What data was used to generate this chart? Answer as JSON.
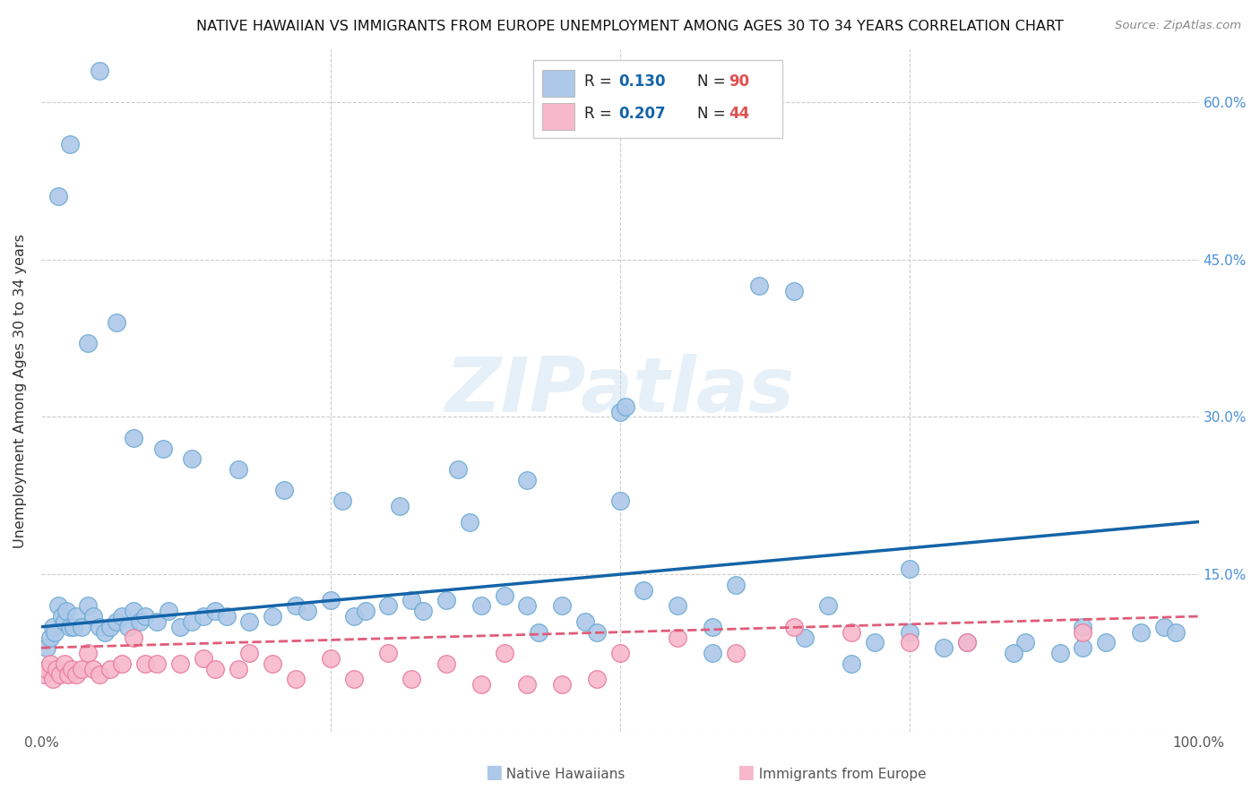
{
  "title": "NATIVE HAWAIIAN VS IMMIGRANTS FROM EUROPE UNEMPLOYMENT AMONG AGES 30 TO 34 YEARS CORRELATION CHART",
  "source": "Source: ZipAtlas.com",
  "ylabel": "Unemployment Among Ages 30 to 34 years",
  "xlim": [
    0,
    100
  ],
  "ylim": [
    0,
    65
  ],
  "native_hawaiian_color": "#adc8e8",
  "native_hawaiian_edge": "#6aaad4",
  "immigrant_europe_color": "#f7b8cb",
  "immigrant_europe_edge": "#e8799a",
  "native_line_color": "#1464a8",
  "immigrant_line_color": "#e05c7a",
  "watermark": "ZIPatlas",
  "legend_r1": "0.130",
  "legend_n1": "90",
  "legend_r2": "0.207",
  "legend_n2": "44",
  "native_hawaiians_x": [
    0.5,
    0.8,
    1.0,
    1.2,
    1.5,
    1.8,
    2.0,
    2.2,
    2.5,
    2.8,
    3.0,
    3.5,
    4.0,
    4.5,
    5.0,
    5.5,
    6.0,
    6.5,
    7.0,
    7.5,
    8.0,
    8.5,
    9.0,
    10.0,
    11.0,
    12.0,
    13.0,
    14.0,
    15.0,
    16.0,
    18.0,
    20.0,
    22.0,
    23.0,
    25.0,
    27.0,
    28.0,
    30.0,
    32.0,
    33.0,
    35.0,
    37.0,
    38.0,
    40.0,
    42.0,
    43.0,
    45.0,
    47.0,
    48.0,
    50.0,
    50.5,
    52.0,
    55.0,
    58.0,
    60.0,
    62.0,
    65.0,
    68.0,
    70.0,
    72.0,
    75.0,
    78.0,
    80.0,
    85.0,
    88.0,
    90.0,
    92.0,
    95.0,
    97.0,
    98.0,
    1.5,
    2.5,
    4.0,
    5.0,
    6.5,
    8.0,
    10.5,
    13.0,
    17.0,
    21.0,
    26.0,
    31.0,
    36.0,
    42.0,
    50.0,
    58.0,
    66.0,
    75.0,
    84.0,
    90.0
  ],
  "native_hawaiians_y": [
    8.0,
    9.0,
    10.0,
    9.5,
    12.0,
    11.0,
    10.5,
    11.5,
    10.0,
    10.0,
    11.0,
    10.0,
    12.0,
    11.0,
    10.0,
    9.5,
    10.0,
    10.5,
    11.0,
    10.0,
    11.5,
    10.5,
    11.0,
    10.5,
    11.5,
    10.0,
    10.5,
    11.0,
    11.5,
    11.0,
    10.5,
    11.0,
    12.0,
    11.5,
    12.5,
    11.0,
    11.5,
    12.0,
    12.5,
    11.5,
    12.5,
    20.0,
    12.0,
    13.0,
    12.0,
    9.5,
    12.0,
    10.5,
    9.5,
    30.5,
    31.0,
    13.5,
    12.0,
    7.5,
    14.0,
    42.5,
    42.0,
    12.0,
    6.5,
    8.5,
    15.5,
    8.0,
    8.5,
    8.5,
    7.5,
    10.0,
    8.5,
    9.5,
    10.0,
    9.5,
    51.0,
    56.0,
    37.0,
    63.0,
    39.0,
    28.0,
    27.0,
    26.0,
    25.0,
    23.0,
    22.0,
    21.5,
    25.0,
    24.0,
    22.0,
    10.0,
    9.0,
    9.5,
    7.5,
    8.0
  ],
  "immigrant_europe_x": [
    0.2,
    0.5,
    0.8,
    1.0,
    1.3,
    1.6,
    2.0,
    2.3,
    2.6,
    3.0,
    3.5,
    4.0,
    4.5,
    5.0,
    6.0,
    7.0,
    8.0,
    9.0,
    10.0,
    12.0,
    14.0,
    15.0,
    17.0,
    18.0,
    20.0,
    22.0,
    25.0,
    27.0,
    30.0,
    32.0,
    35.0,
    38.0,
    40.0,
    42.0,
    45.0,
    48.0,
    50.0,
    55.0,
    60.0,
    65.0,
    70.0,
    75.0,
    80.0,
    90.0
  ],
  "immigrant_europe_y": [
    5.5,
    6.0,
    6.5,
    5.0,
    6.0,
    5.5,
    6.5,
    5.5,
    6.0,
    5.5,
    6.0,
    7.5,
    6.0,
    5.5,
    6.0,
    6.5,
    9.0,
    6.5,
    6.5,
    6.5,
    7.0,
    6.0,
    6.0,
    7.5,
    6.5,
    5.0,
    7.0,
    5.0,
    7.5,
    5.0,
    6.5,
    4.5,
    7.5,
    4.5,
    4.5,
    5.0,
    7.5,
    9.0,
    7.5,
    10.0,
    9.5,
    8.5,
    8.5,
    9.5
  ],
  "grid_color": "#cccccc",
  "tick_color": "#555555",
  "right_tick_color": "#4a90d9"
}
